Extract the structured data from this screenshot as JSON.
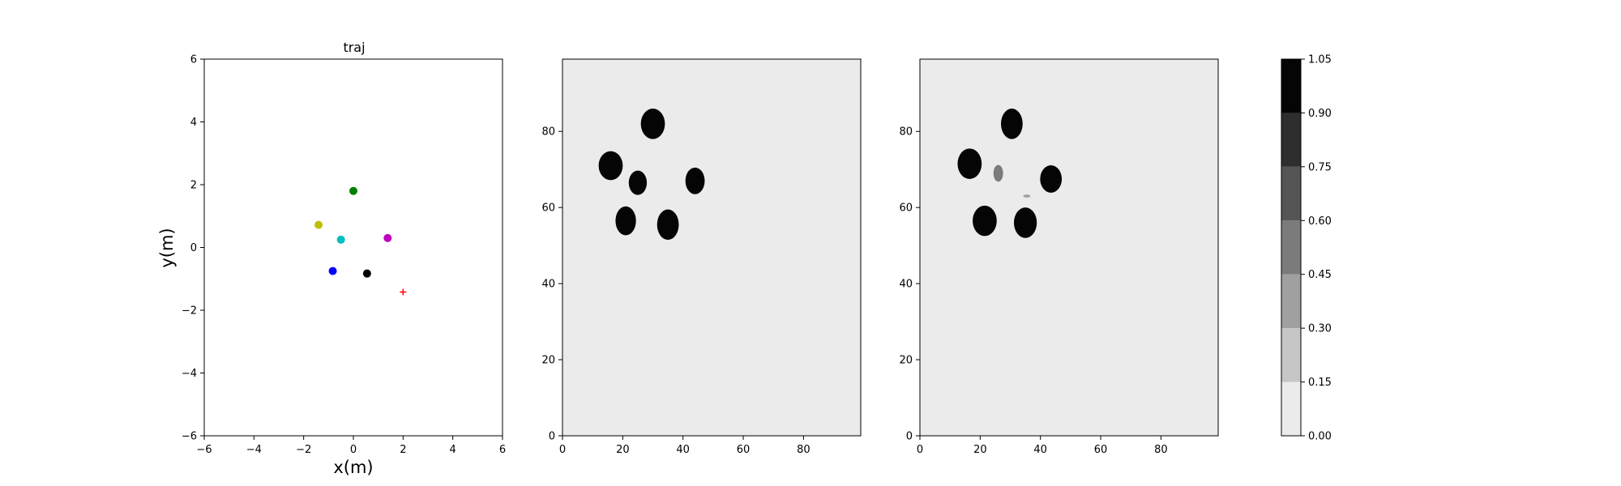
{
  "chart_data": [
    {
      "type": "scatter",
      "title": "traj",
      "xlabel": "x(m)",
      "ylabel": "y(m)",
      "xlim": [
        -6,
        6
      ],
      "ylim": [
        -6,
        6
      ],
      "xticks": [
        -6,
        -4,
        -2,
        0,
        2,
        4,
        6
      ],
      "yticks": [
        -6,
        -4,
        -2,
        0,
        2,
        4,
        6
      ],
      "grid": false,
      "points": [
        {
          "x": 0.0,
          "y": 1.8,
          "color": "#008000",
          "marker": "circle"
        },
        {
          "x": -1.4,
          "y": 0.72,
          "color": "#bfbf00",
          "marker": "circle"
        },
        {
          "x": -0.5,
          "y": 0.25,
          "color": "#00bfbf",
          "marker": "circle"
        },
        {
          "x": 1.38,
          "y": 0.3,
          "color": "#bf00bf",
          "marker": "circle"
        },
        {
          "x": -0.83,
          "y": -0.75,
          "color": "#0000ff",
          "marker": "circle"
        },
        {
          "x": 0.55,
          "y": -0.83,
          "color": "#000000",
          "marker": "circle"
        },
        {
          "x": 2.0,
          "y": -1.42,
          "color": "#ff0000",
          "marker": "plus"
        }
      ]
    },
    {
      "type": "heatmap",
      "title": "",
      "xlabel": "",
      "ylabel": "",
      "xlim": [
        0,
        99
      ],
      "ylim": [
        0,
        99
      ],
      "xticks": [
        0,
        20,
        40,
        60,
        80
      ],
      "yticks": [
        0,
        20,
        40,
        60,
        80
      ],
      "background_value": 0.05,
      "blobs": [
        {
          "cx": 30,
          "cy": 82,
          "rx": 4,
          "ry": 4,
          "value": 1.0
        },
        {
          "cx": 16,
          "cy": 71,
          "rx": 4,
          "ry": 3.8,
          "value": 1.0
        },
        {
          "cx": 25,
          "cy": 66.5,
          "rx": 3,
          "ry": 3.2,
          "value": 1.0
        },
        {
          "cx": 44,
          "cy": 67,
          "rx": 3.2,
          "ry": 3.5,
          "value": 1.0
        },
        {
          "cx": 21,
          "cy": 56.5,
          "rx": 3.4,
          "ry": 3.8,
          "value": 1.0
        },
        {
          "cx": 35,
          "cy": 55.5,
          "rx": 3.6,
          "ry": 4,
          "value": 1.0
        }
      ]
    },
    {
      "type": "heatmap",
      "title": "",
      "xlabel": "",
      "ylabel": "",
      "xlim": [
        0,
        99
      ],
      "ylim": [
        0,
        99
      ],
      "xticks": [
        0,
        20,
        40,
        60,
        80
      ],
      "yticks": [
        0,
        20,
        40,
        60,
        80
      ],
      "background_value": 0.05,
      "blobs": [
        {
          "cx": 30.5,
          "cy": 82,
          "rx": 3.6,
          "ry": 4,
          "value": 1.0
        },
        {
          "cx": 16.5,
          "cy": 71.5,
          "rx": 4,
          "ry": 4,
          "value": 1.0
        },
        {
          "cx": 26,
          "cy": 69,
          "rx": 1.6,
          "ry": 2.2,
          "value": 0.5
        },
        {
          "cx": 43.5,
          "cy": 67.5,
          "rx": 3.6,
          "ry": 3.6,
          "value": 1.0
        },
        {
          "cx": 35.5,
          "cy": 63,
          "rx": 1.2,
          "ry": 0.4,
          "value": 0.3
        },
        {
          "cx": 21.5,
          "cy": 56.5,
          "rx": 4,
          "ry": 4,
          "value": 1.0
        },
        {
          "cx": 35,
          "cy": 56,
          "rx": 3.8,
          "ry": 4,
          "value": 1.0
        }
      ]
    }
  ],
  "colorbar": {
    "ticks": [
      "0.00",
      "0.15",
      "0.30",
      "0.45",
      "0.60",
      "0.75",
      "0.90",
      "1.05"
    ],
    "levels": [
      "#ebebeb",
      "#c6c6c6",
      "#a0a0a0",
      "#7b7b7b",
      "#555555",
      "#2e2e2e",
      "#050505"
    ]
  }
}
